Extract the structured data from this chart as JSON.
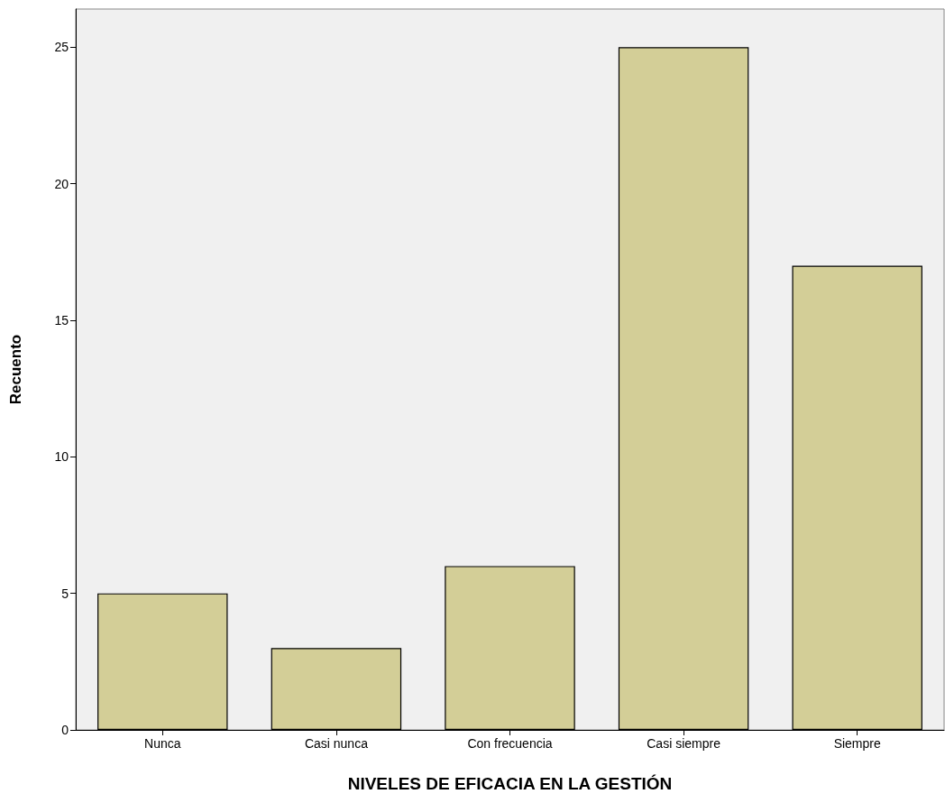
{
  "chart_data": {
    "type": "bar",
    "xlabel": "NIVELES DE EFICACIA EN LA GESTIÓN",
    "ylabel": "Recuento",
    "categories": [
      "Nunca",
      "Casi nunca",
      "Con frecuencia",
      "Casi siempre",
      "Siempre"
    ],
    "values": [
      5,
      3,
      6,
      25,
      17
    ],
    "color": "#d3ce97",
    "ylim": [
      0,
      26.4
    ],
    "yticks": [
      0,
      5,
      10,
      15,
      20,
      25
    ],
    "grid": false
  }
}
